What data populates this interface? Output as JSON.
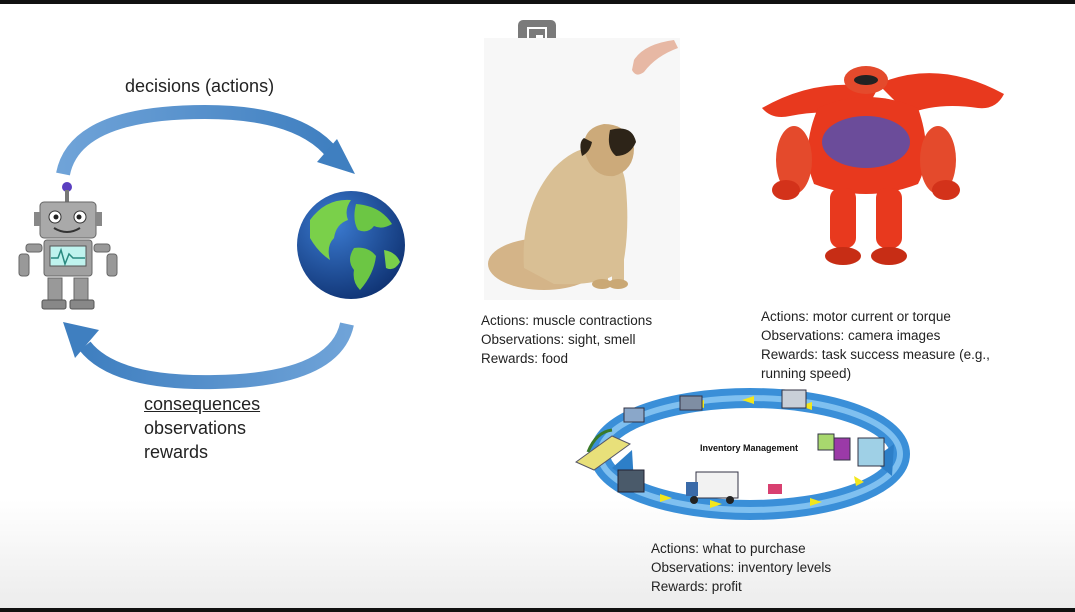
{
  "diagram": {
    "decisions_label": "decisions (actions)",
    "consequences": {
      "title": "consequences",
      "line2": "observations",
      "line3": "rewards"
    }
  },
  "examples": {
    "dog": {
      "actions": "Actions: muscle contractions",
      "observations": "Observations: sight, smell",
      "rewards": "Rewards: food"
    },
    "robot": {
      "actions": "Actions: motor current or torque",
      "observations": "Observations: camera images",
      "rewards_line1": "Rewards: task success measure (e.g.,",
      "rewards_line2": "running speed)"
    },
    "inventory": {
      "diagram_label": "Inventory Management",
      "actions": "Actions: what to purchase",
      "observations": "Observations: inventory levels",
      "rewards": "Rewards: profit"
    }
  },
  "colors": {
    "arrow": "#4a86c5",
    "robot_body": "#9a9a9a",
    "globe_ocean": "#1f4f9a",
    "globe_land": "#6cc644",
    "red_robot": "#e8391e",
    "red_robot_chest": "#6b4c9a",
    "dog": "#d9bf94"
  }
}
